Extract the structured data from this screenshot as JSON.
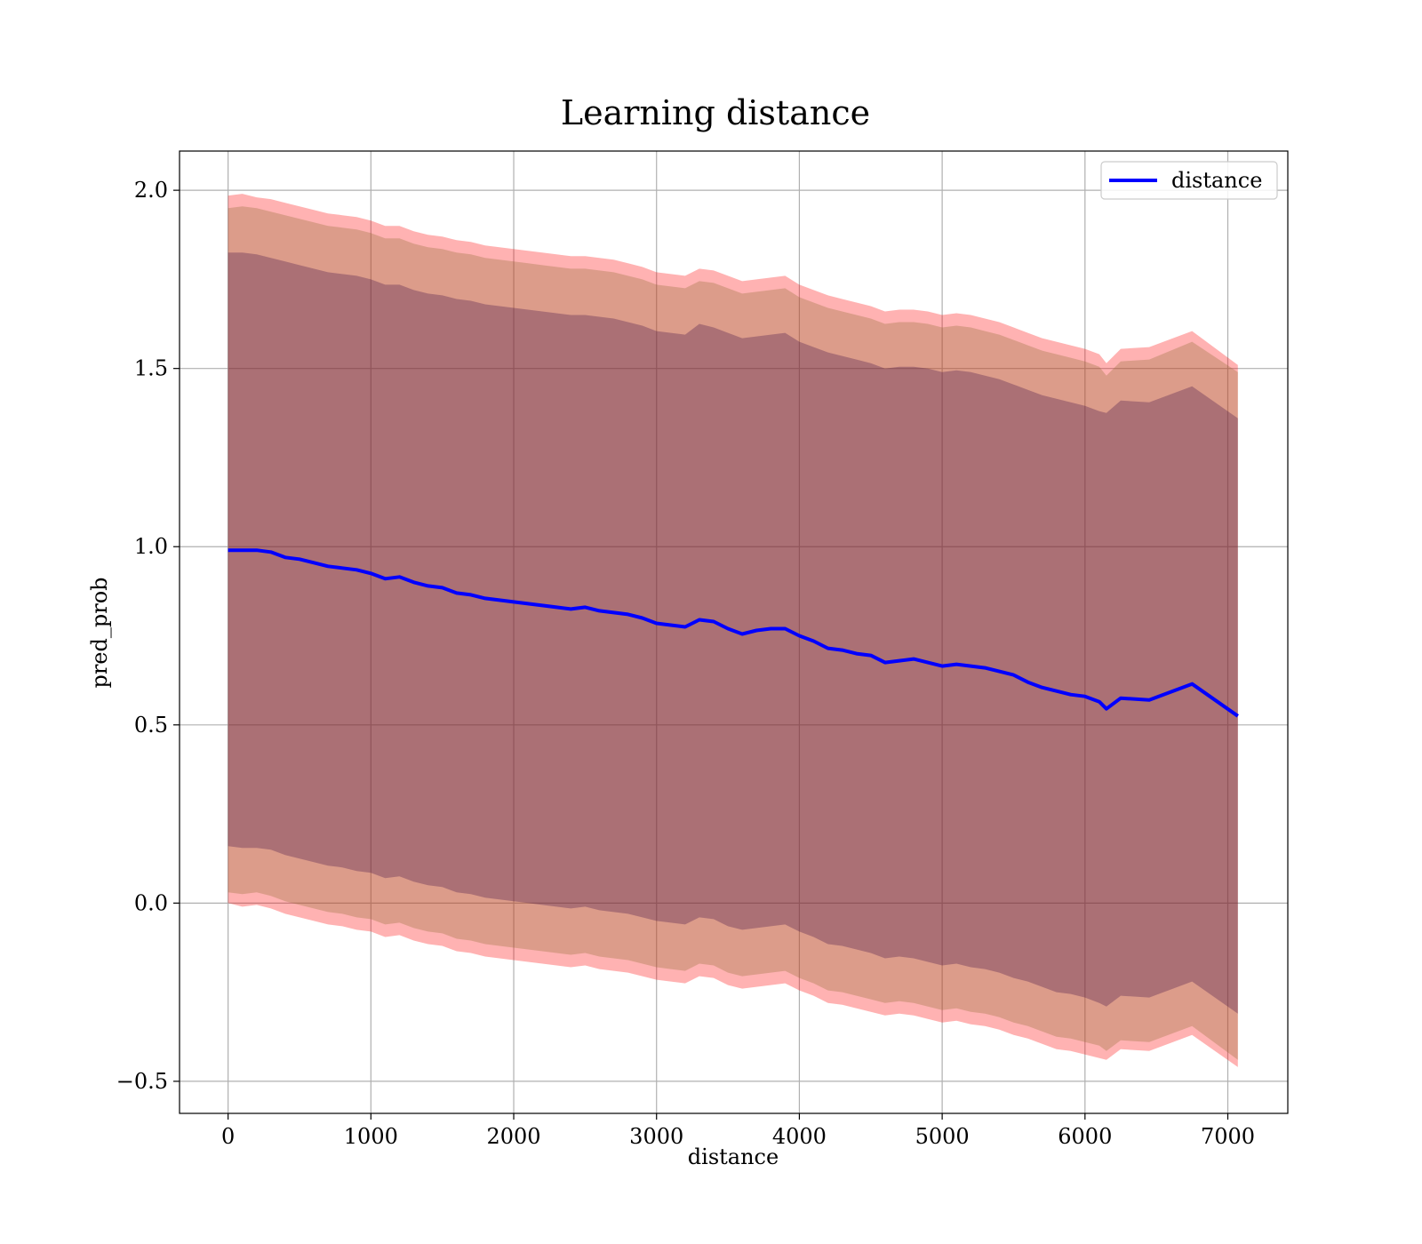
{
  "chart_data": {
    "type": "line",
    "title": "Learning distance",
    "xlabel": "distance",
    "ylabel": "pred_prob",
    "xlim": [
      -340,
      7420
    ],
    "ylim": [
      -0.59,
      2.11
    ],
    "x_ticks": [
      0,
      1000,
      2000,
      3000,
      4000,
      5000,
      6000,
      7000
    ],
    "y_ticks": [
      -0.5,
      0.0,
      0.5,
      1.0,
      1.5,
      2.0
    ],
    "x_tick_labels": [
      "0",
      "1000",
      "2000",
      "3000",
      "4000",
      "5000",
      "6000",
      "7000"
    ],
    "y_tick_labels": [
      "−0.5",
      "0.0",
      "0.5",
      "1.0",
      "1.5",
      "2.0"
    ],
    "grid": true,
    "legend": {
      "position": "top-right",
      "entries": [
        "distance"
      ]
    },
    "colors": {
      "line": "#0000ff",
      "outer_band": "#ff0000",
      "middle_band": "#8b6a2e",
      "inner_band": "#3b0a46"
    },
    "series": [
      {
        "name": "distance",
        "x": [
          0,
          100,
          200,
          300,
          400,
          500,
          600,
          700,
          800,
          900,
          1000,
          1100,
          1200,
          1300,
          1400,
          1500,
          1600,
          1700,
          1800,
          1900,
          2000,
          2100,
          2200,
          2300,
          2400,
          2500,
          2600,
          2700,
          2800,
          2900,
          3000,
          3100,
          3200,
          3300,
          3400,
          3500,
          3600,
          3700,
          3800,
          3900,
          4000,
          4100,
          4200,
          4300,
          4400,
          4500,
          4600,
          4700,
          4800,
          4900,
          5000,
          5100,
          5200,
          5300,
          5400,
          5500,
          5600,
          5700,
          5800,
          5900,
          6000,
          6100,
          6150,
          6250,
          6450,
          6750,
          7070
        ],
        "y": [
          0.99,
          0.99,
          0.99,
          0.985,
          0.97,
          0.965,
          0.955,
          0.945,
          0.94,
          0.935,
          0.925,
          0.91,
          0.915,
          0.9,
          0.89,
          0.885,
          0.87,
          0.865,
          0.855,
          0.85,
          0.845,
          0.84,
          0.835,
          0.83,
          0.825,
          0.83,
          0.82,
          0.815,
          0.81,
          0.8,
          0.785,
          0.78,
          0.775,
          0.795,
          0.79,
          0.77,
          0.755,
          0.765,
          0.77,
          0.77,
          0.75,
          0.735,
          0.715,
          0.71,
          0.7,
          0.695,
          0.675,
          0.68,
          0.685,
          0.675,
          0.665,
          0.67,
          0.665,
          0.66,
          0.65,
          0.64,
          0.62,
          0.605,
          0.595,
          0.585,
          0.58,
          0.565,
          0.545,
          0.575,
          0.57,
          0.615,
          0.525
        ]
      }
    ],
    "bands": [
      {
        "color": "outer_band",
        "upper": [
          1.985,
          1.99,
          1.98,
          1.975,
          1.965,
          1.955,
          1.945,
          1.935,
          1.93,
          1.925,
          1.915,
          1.9,
          1.9,
          1.885,
          1.875,
          1.87,
          1.86,
          1.855,
          1.845,
          1.84,
          1.835,
          1.83,
          1.825,
          1.82,
          1.815,
          1.815,
          1.81,
          1.805,
          1.795,
          1.785,
          1.77,
          1.765,
          1.76,
          1.78,
          1.775,
          1.76,
          1.745,
          1.75,
          1.755,
          1.76,
          1.735,
          1.72,
          1.705,
          1.695,
          1.685,
          1.675,
          1.66,
          1.665,
          1.665,
          1.66,
          1.65,
          1.655,
          1.65,
          1.64,
          1.63,
          1.615,
          1.6,
          1.585,
          1.575,
          1.565,
          1.555,
          1.54,
          1.515,
          1.555,
          1.56,
          1.605,
          1.51
        ],
        "lower": [
          0.0,
          -0.01,
          -0.005,
          -0.015,
          -0.03,
          -0.04,
          -0.05,
          -0.06,
          -0.065,
          -0.075,
          -0.08,
          -0.095,
          -0.09,
          -0.105,
          -0.115,
          -0.12,
          -0.135,
          -0.14,
          -0.15,
          -0.155,
          -0.16,
          -0.165,
          -0.17,
          -0.175,
          -0.18,
          -0.175,
          -0.185,
          -0.19,
          -0.195,
          -0.205,
          -0.215,
          -0.22,
          -0.225,
          -0.205,
          -0.21,
          -0.23,
          -0.24,
          -0.235,
          -0.23,
          -0.225,
          -0.245,
          -0.26,
          -0.28,
          -0.285,
          -0.295,
          -0.305,
          -0.315,
          -0.31,
          -0.315,
          -0.325,
          -0.335,
          -0.33,
          -0.34,
          -0.345,
          -0.355,
          -0.37,
          -0.38,
          -0.395,
          -0.41,
          -0.415,
          -0.425,
          -0.435,
          -0.44,
          -0.41,
          -0.415,
          -0.37,
          -0.46
        ]
      },
      {
        "color": "middle_band",
        "upper": [
          1.95,
          1.955,
          1.95,
          1.94,
          1.93,
          1.92,
          1.91,
          1.9,
          1.895,
          1.89,
          1.88,
          1.865,
          1.865,
          1.85,
          1.84,
          1.835,
          1.825,
          1.82,
          1.81,
          1.805,
          1.8,
          1.795,
          1.79,
          1.785,
          1.78,
          1.78,
          1.775,
          1.77,
          1.76,
          1.75,
          1.735,
          1.73,
          1.725,
          1.745,
          1.74,
          1.725,
          1.71,
          1.715,
          1.72,
          1.725,
          1.7,
          1.685,
          1.67,
          1.66,
          1.65,
          1.64,
          1.625,
          1.63,
          1.63,
          1.625,
          1.615,
          1.62,
          1.615,
          1.605,
          1.595,
          1.58,
          1.565,
          1.55,
          1.54,
          1.53,
          1.52,
          1.505,
          1.48,
          1.52,
          1.525,
          1.575,
          1.49
        ],
        "lower": [
          0.03,
          0.025,
          0.03,
          0.02,
          0.005,
          -0.005,
          -0.015,
          -0.025,
          -0.03,
          -0.04,
          -0.045,
          -0.06,
          -0.055,
          -0.07,
          -0.08,
          -0.085,
          -0.1,
          -0.105,
          -0.115,
          -0.12,
          -0.125,
          -0.13,
          -0.135,
          -0.14,
          -0.145,
          -0.14,
          -0.15,
          -0.155,
          -0.16,
          -0.17,
          -0.18,
          -0.185,
          -0.19,
          -0.17,
          -0.175,
          -0.195,
          -0.205,
          -0.2,
          -0.195,
          -0.19,
          -0.21,
          -0.225,
          -0.245,
          -0.25,
          -0.26,
          -0.27,
          -0.28,
          -0.275,
          -0.28,
          -0.29,
          -0.3,
          -0.295,
          -0.305,
          -0.31,
          -0.32,
          -0.335,
          -0.345,
          -0.36,
          -0.375,
          -0.38,
          -0.39,
          -0.4,
          -0.415,
          -0.385,
          -0.39,
          -0.345,
          -0.44
        ]
      },
      {
        "color": "inner_band",
        "upper": [
          1.825,
          1.825,
          1.82,
          1.81,
          1.8,
          1.79,
          1.78,
          1.77,
          1.765,
          1.76,
          1.75,
          1.735,
          1.735,
          1.72,
          1.71,
          1.705,
          1.695,
          1.69,
          1.68,
          1.675,
          1.67,
          1.665,
          1.66,
          1.655,
          1.65,
          1.65,
          1.645,
          1.64,
          1.63,
          1.62,
          1.605,
          1.6,
          1.595,
          1.625,
          1.615,
          1.6,
          1.585,
          1.59,
          1.595,
          1.6,
          1.575,
          1.56,
          1.545,
          1.535,
          1.525,
          1.515,
          1.5,
          1.505,
          1.505,
          1.5,
          1.49,
          1.495,
          1.49,
          1.48,
          1.47,
          1.455,
          1.44,
          1.425,
          1.415,
          1.405,
          1.395,
          1.38,
          1.375,
          1.41,
          1.405,
          1.45,
          1.36
        ],
        "lower": [
          0.16,
          0.155,
          0.155,
          0.15,
          0.135,
          0.125,
          0.115,
          0.105,
          0.1,
          0.09,
          0.085,
          0.07,
          0.075,
          0.06,
          0.05,
          0.045,
          0.03,
          0.025,
          0.015,
          0.01,
          0.005,
          0.0,
          -0.005,
          -0.01,
          -0.015,
          -0.01,
          -0.02,
          -0.025,
          -0.03,
          -0.04,
          -0.05,
          -0.055,
          -0.06,
          -0.04,
          -0.045,
          -0.065,
          -0.075,
          -0.07,
          -0.065,
          -0.06,
          -0.08,
          -0.095,
          -0.115,
          -0.12,
          -0.13,
          -0.14,
          -0.155,
          -0.15,
          -0.155,
          -0.165,
          -0.175,
          -0.17,
          -0.18,
          -0.185,
          -0.195,
          -0.21,
          -0.22,
          -0.235,
          -0.25,
          -0.255,
          -0.265,
          -0.28,
          -0.29,
          -0.26,
          -0.265,
          -0.22,
          -0.31
        ]
      }
    ]
  }
}
